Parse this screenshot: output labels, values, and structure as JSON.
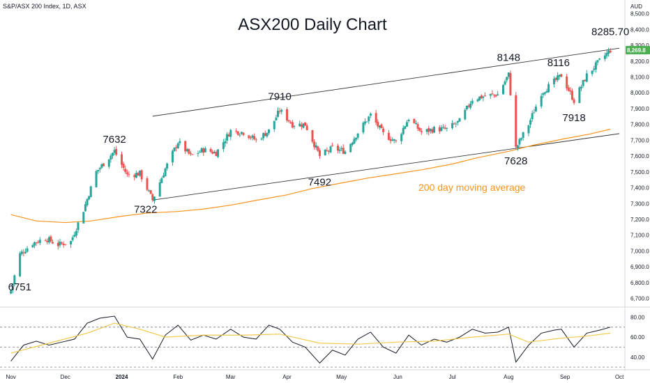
{
  "header": "S&P/ASX 200 Index, 1D, ASX",
  "title": "ASX200 Daily Chart",
  "currency": "AUD",
  "last_price_badge": "8,269.8",
  "colors": {
    "up": "#26a69a",
    "down": "#ef5350",
    "ma": "#f7931a",
    "rsi": "#131722",
    "rsi_ma": "#f2c94c",
    "channel": "#333333",
    "badge": "#4caf50"
  },
  "chart_data": [
    {
      "type": "candlestick",
      "title": "ASX200 Daily Chart",
      "x_labels": [
        "Nov",
        "Dec",
        "2024",
        "Feb",
        "Mar",
        "Apr",
        "May",
        "Jun",
        "Jul",
        "Aug",
        "Sep",
        "Oct"
      ],
      "y_ticks": [
        "8,500.0",
        "8,400.0",
        "8,300.0",
        "8,200.0",
        "8,100.0",
        "8,000.0",
        "7,900.0",
        "7,800.0",
        "7,700.0",
        "7,600.0",
        "7,500.0",
        "7,400.0",
        "7,300.0",
        "7,200.0",
        "7,100.0",
        "7,000.0",
        "6,900.0",
        "6,800.0",
        "6,700.0"
      ],
      "ylim": [
        6650,
        8560
      ],
      "annotations": [
        {
          "text": "6751",
          "date": "2023-11-01",
          "value": 6751
        },
        {
          "text": "7632",
          "date": "2023-12-28",
          "value": 7632
        },
        {
          "text": "7322",
          "date": "2024-01-18",
          "value": 7322
        },
        {
          "text": "7910",
          "date": "2024-03-28",
          "value": 7910
        },
        {
          "text": "7492",
          "date": "2024-04-19",
          "value": 7492
        },
        {
          "text": "8148",
          "date": "2024-08-01",
          "value": 8148
        },
        {
          "text": "7628",
          "date": "2024-08-05",
          "value": 7628
        },
        {
          "text": "8116",
          "date": "2024-08-30",
          "value": 8116
        },
        {
          "text": "7918",
          "date": "2024-09-06",
          "value": 7918
        },
        {
          "text": "8285.70",
          "date": "2024-09-26",
          "value": 8285.7
        }
      ],
      "ma_label": "200 day moving average",
      "series": [
        {
          "name": "Price",
          "points": [
            [
              "2023-11-01",
              6751
            ],
            [
              "2023-11-06",
              6980
            ],
            [
              "2023-11-13",
              7050
            ],
            [
              "2023-11-20",
              7080
            ],
            [
              "2023-11-27",
              7040
            ],
            [
              "2023-12-04",
              7060
            ],
            [
              "2023-12-11",
              7260
            ],
            [
              "2023-12-18",
              7500
            ],
            [
              "2023-12-28",
              7632
            ],
            [
              "2024-01-04",
              7480
            ],
            [
              "2024-01-11",
              7490
            ],
            [
              "2024-01-18",
              7322
            ],
            [
              "2024-01-25",
              7520
            ],
            [
              "2024-02-01",
              7690
            ],
            [
              "2024-02-08",
              7600
            ],
            [
              "2024-02-15",
              7640
            ],
            [
              "2024-02-22",
              7620
            ],
            [
              "2024-03-01",
              7760
            ],
            [
              "2024-03-08",
              7750
            ],
            [
              "2024-03-15",
              7700
            ],
            [
              "2024-03-22",
              7760
            ],
            [
              "2024-03-28",
              7890
            ],
            [
              "2024-04-04",
              7800
            ],
            [
              "2024-04-11",
              7800
            ],
            [
              "2024-04-19",
              7600
            ],
            [
              "2024-04-26",
              7650
            ],
            [
              "2024-05-03",
              7630
            ],
            [
              "2024-05-10",
              7750
            ],
            [
              "2024-05-17",
              7860
            ],
            [
              "2024-05-24",
              7740
            ],
            [
              "2024-05-31",
              7690
            ],
            [
              "2024-06-07",
              7840
            ],
            [
              "2024-06-14",
              7750
            ],
            [
              "2024-06-21",
              7770
            ],
            [
              "2024-06-28",
              7770
            ],
            [
              "2024-07-05",
              7820
            ],
            [
              "2024-07-12",
              7960
            ],
            [
              "2024-07-19",
              7980
            ],
            [
              "2024-07-26",
              7990
            ],
            [
              "2024-08-01",
              8115
            ],
            [
              "2024-08-05",
              7650
            ],
            [
              "2024-08-12",
              7800
            ],
            [
              "2024-08-19",
              8000
            ],
            [
              "2024-08-26",
              8070
            ],
            [
              "2024-08-30",
              8110
            ],
            [
              "2024-09-06",
              7950
            ],
            [
              "2024-09-13",
              8110
            ],
            [
              "2024-09-20",
              8200
            ],
            [
              "2024-09-26",
              8269.8
            ]
          ]
        },
        {
          "name": "200 day moving average",
          "points": [
            [
              "2023-11-01",
              7230
            ],
            [
              "2023-11-15",
              7190
            ],
            [
              "2023-12-01",
              7180
            ],
            [
              "2023-12-15",
              7190
            ],
            [
              "2024-01-01",
              7220
            ],
            [
              "2024-01-15",
              7240
            ],
            [
              "2024-02-01",
              7250
            ],
            [
              "2024-02-15",
              7265
            ],
            [
              "2024-03-01",
              7290
            ],
            [
              "2024-03-15",
              7320
            ],
            [
              "2024-04-01",
              7355
            ],
            [
              "2024-04-15",
              7395
            ],
            [
              "2024-05-01",
              7430
            ],
            [
              "2024-05-15",
              7460
            ],
            [
              "2024-06-01",
              7490
            ],
            [
              "2024-06-15",
              7515
            ],
            [
              "2024-07-01",
              7550
            ],
            [
              "2024-07-15",
              7590
            ],
            [
              "2024-08-01",
              7630
            ],
            [
              "2024-08-15",
              7670
            ],
            [
              "2024-09-01",
              7710
            ],
            [
              "2024-09-15",
              7740
            ],
            [
              "2024-09-26",
              7770
            ]
          ]
        }
      ],
      "trendlines": [
        {
          "name": "upper-channel",
          "from": [
            "2024-01-18",
            7852
          ],
          "to": [
            "2024-10-01",
            8282
          ]
        },
        {
          "name": "lower-channel",
          "from": [
            "2024-01-18",
            7322
          ],
          "to": [
            "2024-10-01",
            7742
          ]
        }
      ]
    },
    {
      "type": "line",
      "y_ticks": [
        "80.00",
        "60.00",
        "40.00"
      ],
      "ylim": [
        28,
        88
      ],
      "levels": [
        70,
        50,
        30
      ],
      "series": [
        {
          "points": [
            [
              "2023-11-01",
              36
            ],
            [
              "2023-11-08",
              52
            ],
            [
              "2023-11-15",
              56
            ],
            [
              "2023-11-22",
              52
            ],
            [
              "2023-11-29",
              55
            ],
            [
              "2023-12-06",
              58
            ],
            [
              "2023-12-13",
              74
            ],
            [
              "2023-12-20",
              79
            ],
            [
              "2023-12-28",
              81
            ],
            [
              "2024-01-04",
              60
            ],
            [
              "2024-01-11",
              58
            ],
            [
              "2024-01-18",
              38
            ],
            [
              "2024-01-25",
              62
            ],
            [
              "2024-02-01",
              72
            ],
            [
              "2024-02-08",
              57
            ],
            [
              "2024-02-15",
              62
            ],
            [
              "2024-02-22",
              58
            ],
            [
              "2024-03-01",
              68
            ],
            [
              "2024-03-08",
              60
            ],
            [
              "2024-03-15",
              58
            ],
            [
              "2024-03-22",
              72
            ],
            [
              "2024-03-28",
              68
            ],
            [
              "2024-04-04",
              55
            ],
            [
              "2024-04-11",
              50
            ],
            [
              "2024-04-19",
              34
            ],
            [
              "2024-04-26",
              47
            ],
            [
              "2024-05-03",
              42
            ],
            [
              "2024-05-10",
              58
            ],
            [
              "2024-05-17",
              65
            ],
            [
              "2024-05-24",
              50
            ],
            [
              "2024-05-31",
              44
            ],
            [
              "2024-06-07",
              62
            ],
            [
              "2024-06-14",
              52
            ],
            [
              "2024-06-21",
              58
            ],
            [
              "2024-06-28",
              55
            ],
            [
              "2024-07-05",
              60
            ],
            [
              "2024-07-12",
              68
            ],
            [
              "2024-07-19",
              64
            ],
            [
              "2024-07-26",
              65
            ],
            [
              "2024-08-01",
              70
            ],
            [
              "2024-08-05",
              35
            ],
            [
              "2024-08-12",
              52
            ],
            [
              "2024-08-19",
              64
            ],
            [
              "2024-08-26",
              67
            ],
            [
              "2024-08-30",
              68
            ],
            [
              "2024-09-06",
              50
            ],
            [
              "2024-09-13",
              64
            ],
            [
              "2024-09-20",
              67
            ],
            [
              "2024-09-26",
              70
            ]
          ]
        },
        {
          "points": [
            [
              "2023-11-01",
              44
            ],
            [
              "2023-11-22",
              54
            ],
            [
              "2023-12-13",
              64
            ],
            [
              "2023-12-28",
              74
            ],
            [
              "2024-01-11",
              68
            ],
            [
              "2024-01-25",
              60
            ],
            [
              "2024-02-15",
              62
            ],
            [
              "2024-03-08",
              62
            ],
            [
              "2024-03-28",
              63
            ],
            [
              "2024-04-19",
              54
            ],
            [
              "2024-05-10",
              53
            ],
            [
              "2024-05-31",
              55
            ],
            [
              "2024-06-21",
              56
            ],
            [
              "2024-07-12",
              60
            ],
            [
              "2024-08-01",
              63
            ],
            [
              "2024-08-12",
              55
            ],
            [
              "2024-08-30",
              59
            ],
            [
              "2024-09-13",
              61
            ],
            [
              "2024-09-26",
              64
            ]
          ]
        }
      ]
    }
  ]
}
